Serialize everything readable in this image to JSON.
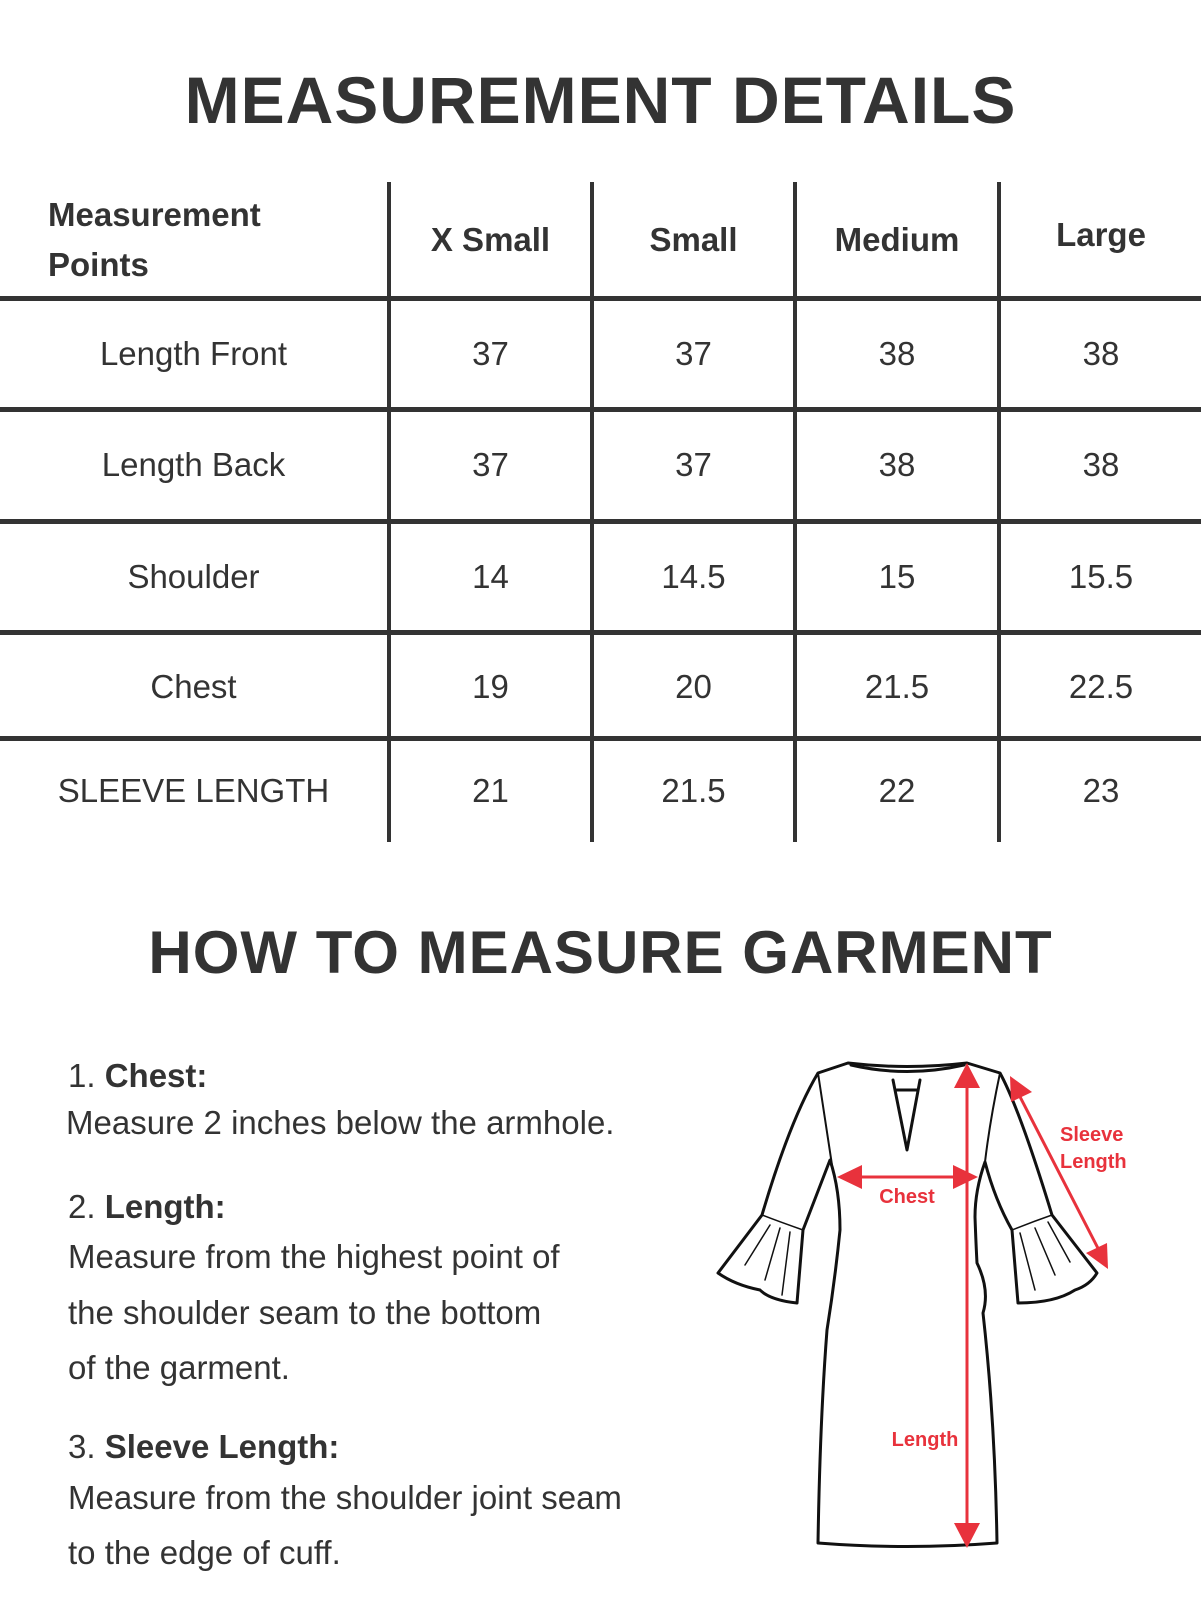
{
  "title": "MEASUREMENT DETAILS",
  "table": {
    "headers": [
      "Measurement Points",
      "X Small",
      "Small",
      "Medium",
      "Large"
    ],
    "header_first_lines": [
      "Measurement",
      "Points"
    ],
    "rows": [
      {
        "label": "Length Front",
        "values": [
          "37",
          "37",
          "38",
          "38"
        ]
      },
      {
        "label": "Length Back",
        "values": [
          "37",
          "37",
          "38",
          "38"
        ]
      },
      {
        "label": "Shoulder",
        "values": [
          "14",
          "14.5",
          "15",
          "15.5"
        ]
      },
      {
        "label": "Chest",
        "values": [
          "19",
          "20",
          "21.5",
          "22.5"
        ]
      },
      {
        "label": "SLEEVE LENGTH",
        "values": [
          "21",
          "21.5",
          "22",
          "23"
        ]
      }
    ]
  },
  "how_to": {
    "title": "HOW TO MEASURE GARMENT",
    "items": [
      {
        "num": "1.",
        "heading": "Chest:",
        "lines": [
          "Measure 2 inches  below the armhole."
        ]
      },
      {
        "num": "2.",
        "heading": "Length:",
        "lines": [
          "Measure from the highest point of",
          "the shoulder seam to the bottom",
          "of the garment."
        ]
      },
      {
        "num": "3.",
        "heading": "Sleeve Length:",
        "lines": [
          "Measure from the shoulder joint seam",
          "to the edge of cuff."
        ]
      }
    ]
  },
  "diagram": {
    "labels": {
      "chest": "Chest",
      "length": "Length",
      "sleeve_1": "Sleeve",
      "sleeve_2": "Length"
    },
    "accent_color": "#e8323c",
    "outline_color": "#111111"
  }
}
